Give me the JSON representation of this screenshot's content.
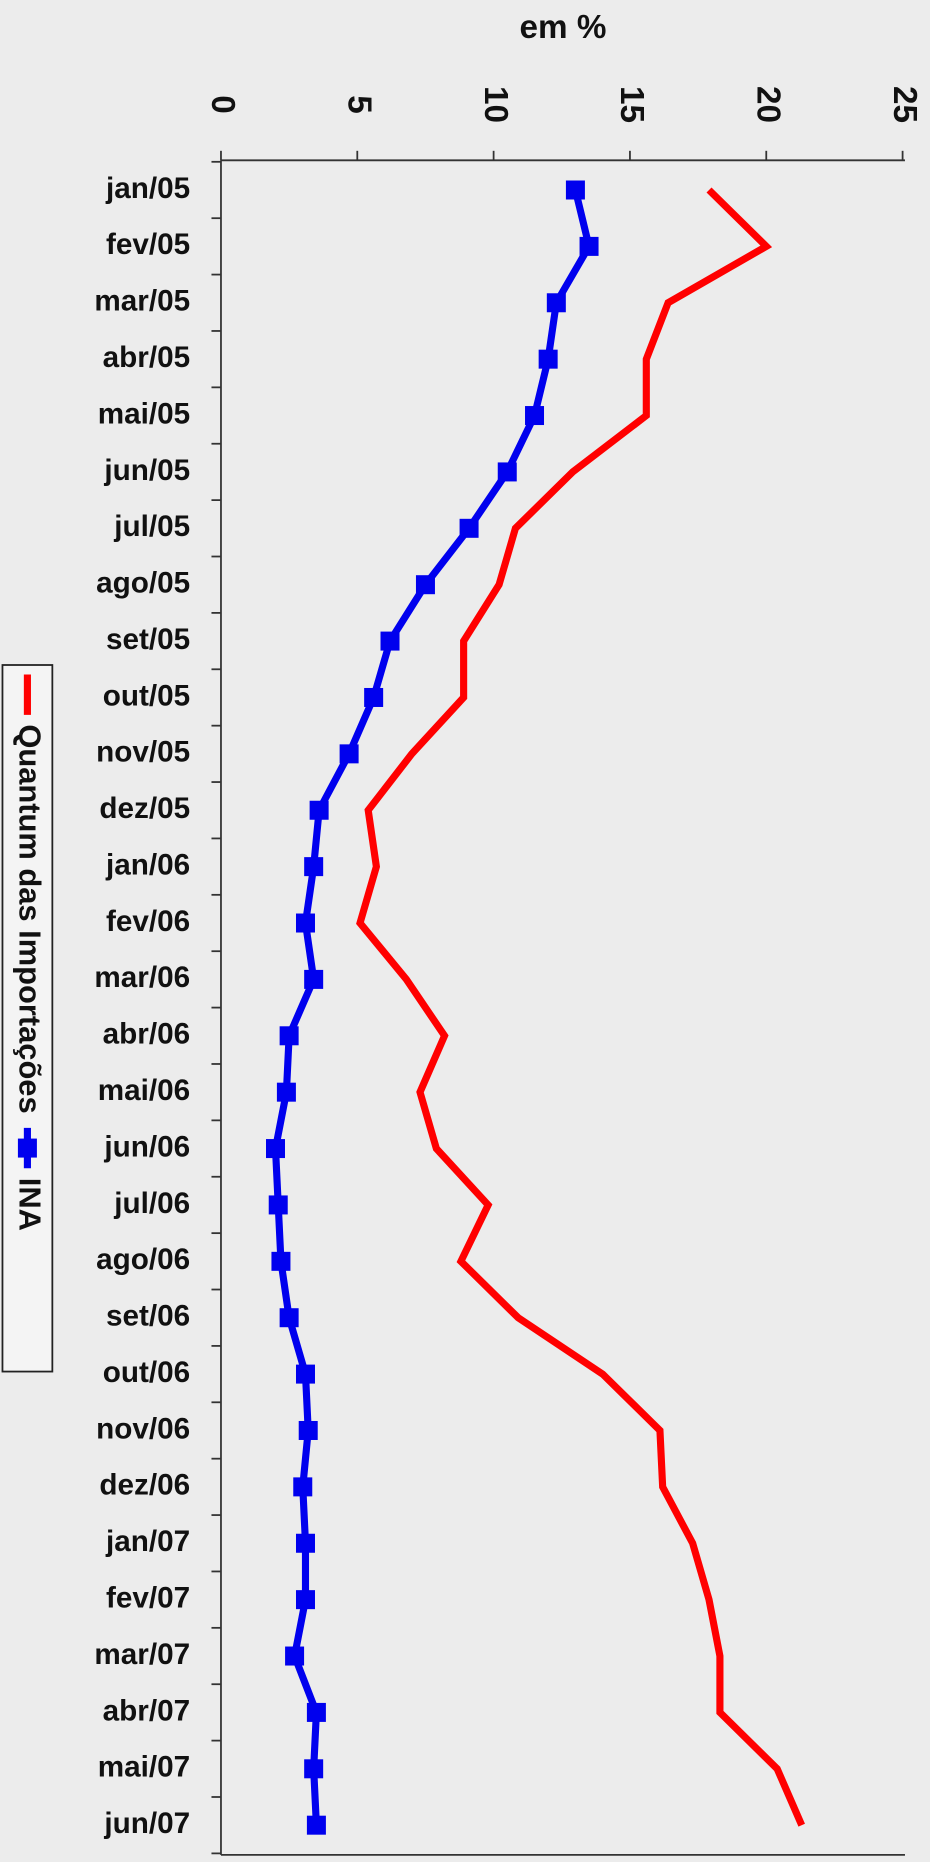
{
  "chart_data": {
    "type": "line",
    "title": "em %",
    "categories": [
      "jan/05",
      "fev/05",
      "mar/05",
      "abr/05",
      "mai/05",
      "jun/05",
      "jul/05",
      "ago/05",
      "set/05",
      "out/05",
      "nov/05",
      "dez/05",
      "jan/06",
      "fev/06",
      "mar/06",
      "abr/06",
      "mai/06",
      "jun/06",
      "jul/06",
      "ago/06",
      "set/06",
      "out/06",
      "nov/06",
      "dez/06",
      "jan/07",
      "fev/07",
      "mar/07",
      "abr/07",
      "mai/07",
      "jun/07"
    ],
    "series": [
      {
        "name": "Quantum das Importações",
        "color": "#ff0000",
        "values": [
          17.9,
          20.0,
          16.4,
          15.6,
          15.6,
          12.9,
          10.8,
          10.2,
          8.9,
          8.9,
          7.0,
          5.4,
          5.7,
          5.1,
          6.8,
          8.2,
          7.3,
          7.9,
          9.8,
          8.8,
          10.9,
          14.0,
          16.1,
          16.2,
          17.3,
          17.9,
          18.3,
          18.3,
          20.4,
          21.3
        ]
      },
      {
        "name": "INA",
        "color": "#0000ee",
        "marker": "square",
        "values": [
          13.0,
          13.5,
          12.3,
          12.0,
          11.5,
          10.5,
          9.1,
          7.5,
          6.2,
          5.6,
          4.7,
          3.6,
          3.4,
          3.1,
          3.4,
          2.5,
          2.4,
          2.0,
          2.1,
          2.2,
          2.5,
          3.1,
          3.2,
          3.0,
          3.1,
          3.1,
          2.7,
          3.5,
          3.4,
          3.5
        ]
      }
    ],
    "ylim": [
      0,
      25
    ],
    "yticks": [
      0,
      5,
      10,
      15,
      20,
      25
    ],
    "legend": "left"
  }
}
